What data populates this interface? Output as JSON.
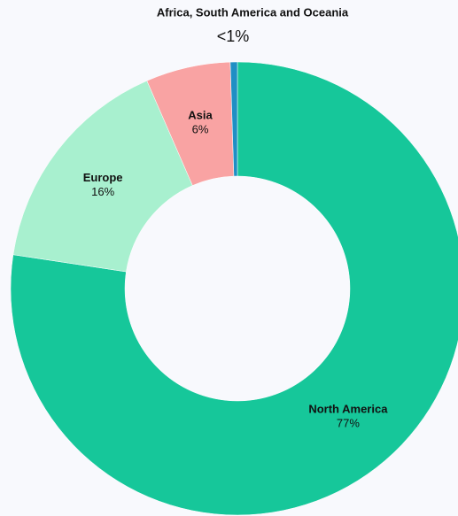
{
  "chart_data": {
    "type": "donut",
    "categories": [
      "North America",
      "Europe",
      "Asia",
      "Africa, South America and Oceania"
    ],
    "values": [
      77,
      16,
      6,
      0.5
    ],
    "value_labels": [
      "77%",
      "16%",
      "6%",
      "<1%"
    ],
    "colors": [
      "#16c79a",
      "#a8f0cf",
      "#f9a3a3",
      "#1f8fc4"
    ]
  }
}
